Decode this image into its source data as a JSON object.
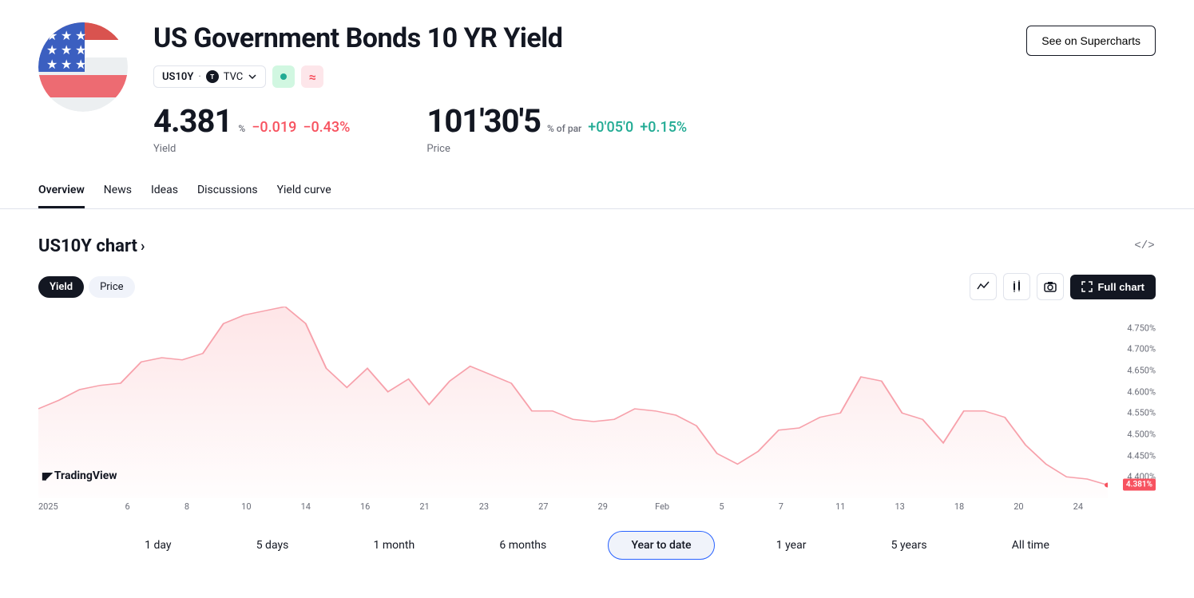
{
  "header": {
    "title": "US Government Bonds 10 YR Yield",
    "symbol_ticker": "US10Y",
    "symbol_source": "TVC",
    "supercharts_label": "See on Supercharts",
    "pill_approx": "≈"
  },
  "metrics": {
    "yield_value": "4.381",
    "yield_unit": "%",
    "yield_change_abs": "−0.019",
    "yield_change_pct": "−0.43%",
    "yield_label": "Yield",
    "price_value": "101'30'5",
    "price_unit": "% of par",
    "price_change_abs": "+0'05'0",
    "price_change_pct": "+0.15%",
    "price_label": "Price"
  },
  "tabs": {
    "items": [
      {
        "label": "Overview",
        "active": true
      },
      {
        "label": "News",
        "active": false
      },
      {
        "label": "Ideas",
        "active": false
      },
      {
        "label": "Discussions",
        "active": false
      },
      {
        "label": "Yield curve",
        "active": false
      }
    ]
  },
  "chart": {
    "title": "US10Y chart",
    "watermark": "TradingView",
    "chips": [
      {
        "label": "Yield",
        "active": true
      },
      {
        "label": "Price",
        "active": false
      }
    ],
    "full_chart_label": "Full chart",
    "line_color": "#f7a1ab",
    "fill_color_top": "rgba(247,82,95,0.15)",
    "fill_color_bottom": "rgba(247,82,95,0.01)",
    "y_axis": {
      "min": 4.35,
      "max": 4.8,
      "ticks": [
        "4.750%",
        "4.700%",
        "4.650%",
        "4.600%",
        "4.550%",
        "4.500%",
        "4.450%",
        "4.400%"
      ],
      "tick_values": [
        4.75,
        4.7,
        4.65,
        4.6,
        4.55,
        4.5,
        4.45,
        4.4
      ]
    },
    "price_flag": "4.381%",
    "price_flag_value": 4.381,
    "x_labels": [
      "2025",
      "6",
      "8",
      "10",
      "14",
      "16",
      "21",
      "23",
      "27",
      "29",
      "Feb",
      "5",
      "7",
      "11",
      "13",
      "18",
      "20",
      "24"
    ],
    "series": [
      4.56,
      4.58,
      4.605,
      4.615,
      4.62,
      4.67,
      4.68,
      4.675,
      4.69,
      4.76,
      4.78,
      4.79,
      4.8,
      4.76,
      4.655,
      4.61,
      4.655,
      4.6,
      4.63,
      4.57,
      4.625,
      4.66,
      4.64,
      4.62,
      4.555,
      4.555,
      4.535,
      4.53,
      4.535,
      4.56,
      4.555,
      4.545,
      4.52,
      4.455,
      4.43,
      4.46,
      4.51,
      4.515,
      4.54,
      4.55,
      4.635,
      4.625,
      4.55,
      4.535,
      4.48,
      4.555,
      4.555,
      4.54,
      4.475,
      4.43,
      4.4,
      4.395,
      4.381
    ],
    "ranges": [
      {
        "label": "1 day",
        "active": false
      },
      {
        "label": "5 days",
        "active": false
      },
      {
        "label": "1 month",
        "active": false
      },
      {
        "label": "6 months",
        "active": false
      },
      {
        "label": "Year to date",
        "active": true
      },
      {
        "label": "1 year",
        "active": false
      },
      {
        "label": "5 years",
        "active": false
      },
      {
        "label": "All time",
        "active": false
      }
    ]
  },
  "colors": {
    "neg": "#f7525f",
    "pos": "#22ab94"
  }
}
